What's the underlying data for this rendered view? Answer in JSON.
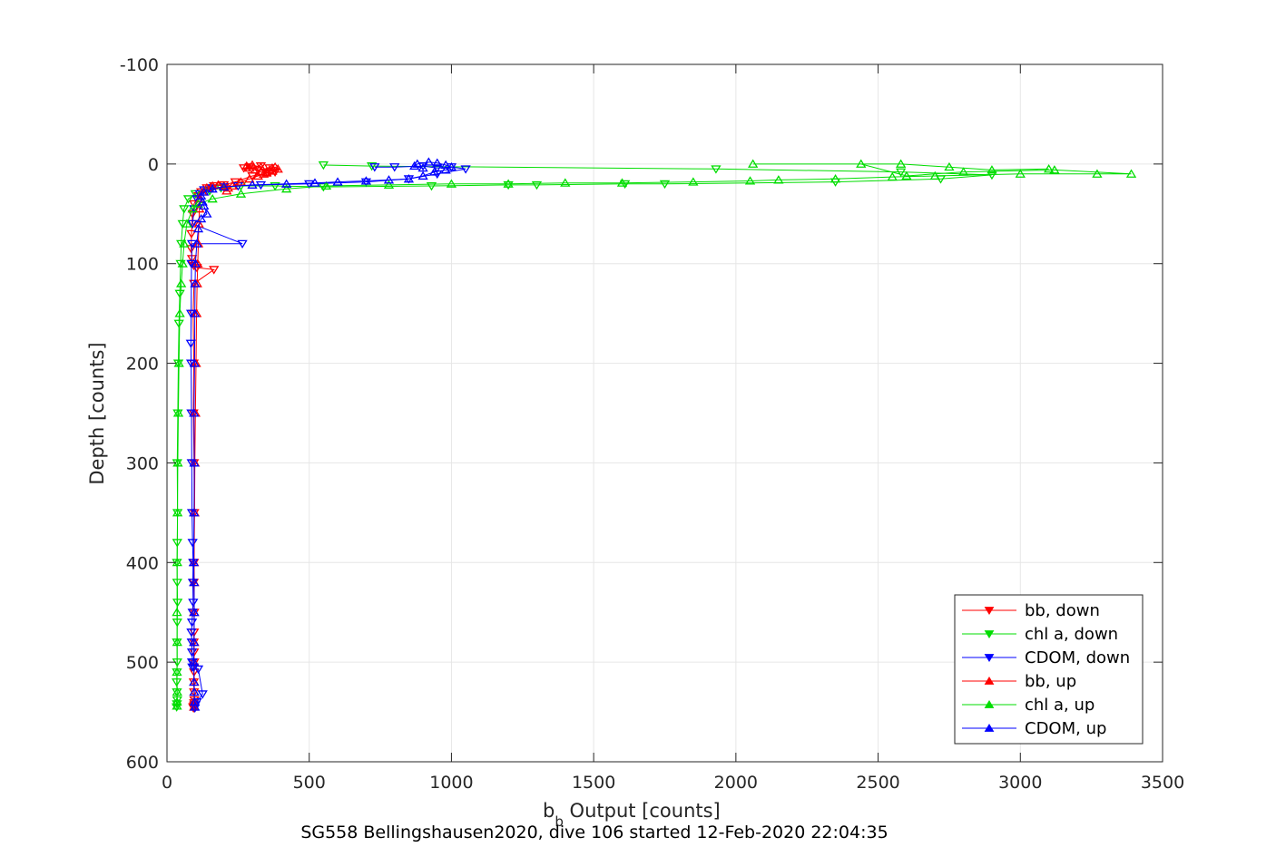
{
  "chart_data": {
    "type": "line",
    "xlabel_main": "b",
    "xlabel_sub": "b",
    "xlabel_rest": " Output [counts]",
    "ylabel": "Depth [counts]",
    "caption": "SG558 Bellingshausen2020, dive 106 started 12-Feb-2020 22:04:35",
    "xlim": [
      0,
      3500
    ],
    "ylim": [
      -100,
      600
    ],
    "y_reversed": true,
    "xticks": [
      0,
      500,
      1000,
      1500,
      2000,
      2500,
      3000,
      3500
    ],
    "yticks": [
      -100,
      0,
      100,
      200,
      300,
      400,
      500,
      600
    ],
    "xtick_labels": [
      "0",
      "500",
      "1000",
      "1500",
      "2000",
      "2500",
      "3000",
      "3500"
    ],
    "ytick_labels": [
      "-100",
      "0",
      "100",
      "200",
      "300",
      "400",
      "500",
      "600"
    ],
    "grid": true,
    "legend_position": "bottom-right",
    "series": [
      {
        "name": "bb, down",
        "color": "#ff0000",
        "marker": "triangle-down",
        "x": [
          330,
          290,
          270,
          320,
          360,
          380,
          300,
          240,
          200,
          165,
          140,
          120,
          110,
          95,
          90,
          88,
          86,
          85,
          88,
          90,
          95,
          105,
          165,
          95,
          92,
          94,
          93,
          95,
          96,
          95,
          94,
          96,
          95,
          94,
          95,
          96,
          95,
          94,
          95,
          96,
          95,
          96,
          95,
          92,
          93
        ],
        "y": [
          2,
          3,
          4,
          6,
          4,
          8,
          12,
          18,
          21,
          22,
          24,
          28,
          32,
          40,
          50,
          60,
          70,
          85,
          95,
          100,
          102,
          104,
          106,
          120,
          150,
          200,
          250,
          300,
          350,
          400,
          420,
          450,
          470,
          480,
          490,
          500,
          510,
          520,
          530,
          538,
          541,
          543,
          544,
          545,
          546
        ]
      },
      {
        "name": "chl a, down",
        "color": "#00dd00",
        "marker": "triangle-down",
        "x": [
          550,
          720,
          1930,
          2580,
          2900,
          2720,
          2350,
          1750,
          1610,
          1300,
          1200,
          930,
          550,
          380,
          260,
          190,
          150,
          100,
          75,
          60,
          55,
          50,
          48,
          45,
          42,
          40,
          38,
          36,
          37,
          36,
          35,
          36,
          37,
          36,
          35,
          36,
          35,
          34,
          35,
          36,
          35,
          34
        ],
        "y": [
          1,
          2,
          5,
          8,
          11,
          15,
          18,
          20,
          20,
          21,
          21,
          22,
          23,
          22,
          22,
          24,
          27,
          30,
          35,
          45,
          60,
          80,
          100,
          130,
          160,
          200,
          250,
          300,
          350,
          380,
          400,
          420,
          440,
          460,
          480,
          500,
          510,
          520,
          530,
          538,
          542,
          545
        ]
      },
      {
        "name": "CDOM, down",
        "color": "#0000ff",
        "marker": "triangle-down",
        "x": [
          730,
          800,
          900,
          950,
          1000,
          1050,
          950,
          850,
          700,
          500,
          330,
          250,
          200,
          160,
          130,
          115,
          105,
          95,
          90,
          265,
          88,
          86,
          85,
          84,
          85,
          86,
          87,
          88,
          90,
          92,
          91,
          92,
          90,
          88,
          86,
          87,
          88,
          90,
          89,
          88,
          95,
          110,
          125,
          105,
          100,
          98
        ],
        "y": [
          3,
          3,
          2,
          4,
          3,
          5,
          10,
          15,
          18,
          20,
          21,
          22,
          23,
          24,
          26,
          30,
          35,
          45,
          60,
          80,
          80,
          100,
          150,
          180,
          200,
          250,
          300,
          350,
          380,
          400,
          420,
          440,
          450,
          460,
          470,
          480,
          490,
          500,
          505,
          500,
          505,
          507,
          532,
          540,
          543,
          546
        ]
      },
      {
        "name": "bb, up",
        "color": "#ff0000",
        "marker": "triangle-up",
        "x": [
          95,
          95,
          96,
          96,
          95,
          96,
          95,
          96,
          95,
          97,
          98,
          100,
          102,
          104,
          106,
          108,
          110,
          112,
          114,
          118,
          125,
          140,
          160,
          180,
          200,
          215,
          210,
          230,
          260,
          290,
          320,
          340,
          350,
          360,
          370,
          380,
          390,
          370,
          350,
          330,
          310,
          290,
          280,
          300,
          330
        ],
        "y": [
          545,
          540,
          530,
          520,
          500,
          480,
          450,
          420,
          400,
          350,
          300,
          250,
          200,
          150,
          120,
          100,
          80,
          60,
          45,
          35,
          28,
          24,
          22,
          21,
          22,
          24,
          27,
          22,
          18,
          15,
          12,
          10,
          8,
          6,
          4,
          3,
          5,
          7,
          9,
          8,
          6,
          4,
          2,
          1,
          3
        ]
      },
      {
        "name": "chl a, up",
        "color": "#00dd00",
        "marker": "triangle-up",
        "x": [
          35,
          35,
          36,
          35,
          36,
          35,
          36,
          37,
          38,
          40,
          42,
          45,
          50,
          55,
          60,
          70,
          90,
          110,
          160,
          260,
          420,
          560,
          780,
          1000,
          1200,
          1400,
          1600,
          1850,
          2050,
          2150,
          2350,
          2550,
          2700,
          3000,
          3270,
          3390,
          3120,
          2800,
          2600,
          2440,
          2060,
          2580,
          2750,
          2900,
          3100
        ],
        "y": [
          544,
          540,
          530,
          510,
          480,
          450,
          400,
          350,
          300,
          250,
          200,
          150,
          120,
          100,
          80,
          60,
          45,
          40,
          35,
          30,
          25,
          22,
          21,
          20,
          20,
          19,
          19,
          18,
          17,
          16,
          15,
          13,
          12,
          10,
          10,
          10,
          6,
          8,
          12,
          0,
          0,
          0,
          3,
          6,
          5
        ]
      },
      {
        "name": "CDOM, up",
        "color": "#0000ff",
        "marker": "triangle-up",
        "x": [
          98,
          97,
          96,
          95,
          94,
          95,
          96,
          95,
          94,
          95,
          96,
          95,
          97,
          98,
          99,
          100,
          105,
          110,
          120,
          140,
          130,
          125,
          120,
          130,
          160,
          200,
          300,
          420,
          520,
          600,
          700,
          780,
          850,
          900,
          940,
          980,
          1000,
          980,
          950,
          920,
          880,
          870,
          900
        ],
        "y": [
          545,
          540,
          530,
          520,
          500,
          480,
          450,
          420,
          400,
          350,
          300,
          250,
          200,
          150,
          120,
          100,
          80,
          65,
          55,
          50,
          42,
          38,
          32,
          28,
          25,
          23,
          21,
          20,
          19,
          18,
          17,
          16,
          15,
          12,
          8,
          6,
          3,
          1,
          -1,
          -2,
          0,
          2,
          4
        ]
      }
    ]
  }
}
